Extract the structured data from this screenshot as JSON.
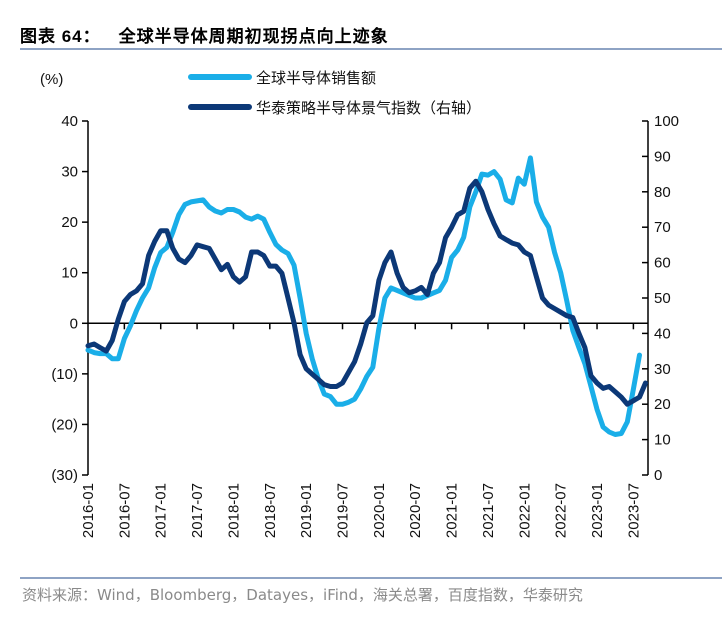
{
  "header": {
    "figure_no": "图表 64：",
    "title": "全球半导体周期初现拐点向上迹象"
  },
  "footer": {
    "source": "资料来源：Wind，Bloomberg，Datayes，iFind，海关总署，百度指数，华泰研究"
  },
  "colors": {
    "sales": "#1aaee8",
    "index": "#0c3877",
    "axis": "#000000"
  },
  "chart_data": {
    "type": "line",
    "title": "全球半导体周期初现拐点向上迹象",
    "ylabel": "(%)",
    "start_month": "2016-01",
    "x_tick_labels": [
      "2016-01",
      "2016-07",
      "2017-01",
      "2017-07",
      "2018-01",
      "2018-07",
      "2019-01",
      "2019-07",
      "2020-01",
      "2020-07",
      "2021-01",
      "2021-07",
      "2022-01",
      "2022-07",
      "2023-01",
      "2023-07"
    ],
    "y_left": {
      "lim": [
        -30,
        40
      ],
      "tick_labels": [
        "(30)",
        "(20)",
        "(10)",
        "0",
        "10",
        "20",
        "30",
        "40"
      ],
      "ticks": [
        -30,
        -20,
        -10,
        0,
        10,
        20,
        30,
        40
      ]
    },
    "y_right": {
      "lim": [
        0,
        100
      ],
      "tick_labels": [
        "0",
        "10",
        "20",
        "30",
        "40",
        "50",
        "60",
        "70",
        "80",
        "90",
        "100"
      ],
      "ticks": [
        0,
        10,
        20,
        30,
        40,
        50,
        60,
        70,
        80,
        90,
        100
      ]
    },
    "legend_position": "top",
    "series": [
      {
        "name": "全球半导体销售额",
        "axis": "left",
        "values": [
          -5.3,
          -5.8,
          -6,
          -6,
          -7,
          -7,
          -3,
          -0.5,
          2.5,
          5,
          7,
          11,
          14,
          15,
          18,
          21.5,
          23.5,
          24,
          24.2,
          24.4,
          23,
          22.2,
          21.8,
          22.5,
          22.5,
          22,
          21,
          20.6,
          21.2,
          20.6,
          18,
          15.6,
          14.5,
          13.8,
          11.5,
          5,
          -2,
          -7,
          -11,
          -14,
          -14.5,
          -16,
          -16,
          -15.6,
          -15,
          -13,
          -10.5,
          -8.7,
          -1,
          5,
          7,
          6.5,
          6,
          5.5,
          5,
          5,
          5.5,
          6,
          6.5,
          8.5,
          13,
          14.5,
          17,
          23,
          26,
          29.5,
          29.3,
          30,
          28.5,
          24.4,
          23.8,
          28.7,
          27.5,
          32.7,
          24,
          21,
          19,
          14,
          10,
          4.5,
          -1.4,
          -4.8,
          -8,
          -12.5,
          -17,
          -20.5,
          -21.5,
          -22,
          -21.8,
          -19.5,
          -13,
          -6.3,
          null
        ]
      },
      {
        "name": "华泰策略半导体景气指数（右轴）",
        "axis": "right",
        "values": [
          36.5,
          37,
          36,
          35,
          38,
          44,
          49,
          51,
          52,
          54,
          62,
          66,
          69,
          69,
          64,
          61,
          60,
          62,
          65,
          64.5,
          64,
          61,
          58,
          59.5,
          56,
          54.5,
          56,
          63,
          63,
          62,
          59,
          59,
          57,
          50,
          43,
          34,
          30,
          28.5,
          27,
          25.5,
          25,
          25,
          26,
          29,
          32,
          37,
          43,
          45,
          55,
          60,
          63,
          57,
          53,
          51.5,
          52,
          53,
          51,
          57,
          60,
          67,
          70,
          73.5,
          74.5,
          81,
          83,
          80,
          75,
          71,
          67.5,
          66.5,
          65.5,
          65,
          63,
          62,
          56,
          50,
          48,
          47,
          46,
          45,
          44.5,
          40,
          36,
          28,
          26,
          24.5,
          25,
          23.5,
          22,
          20,
          21,
          22,
          26
        ]
      }
    ]
  }
}
